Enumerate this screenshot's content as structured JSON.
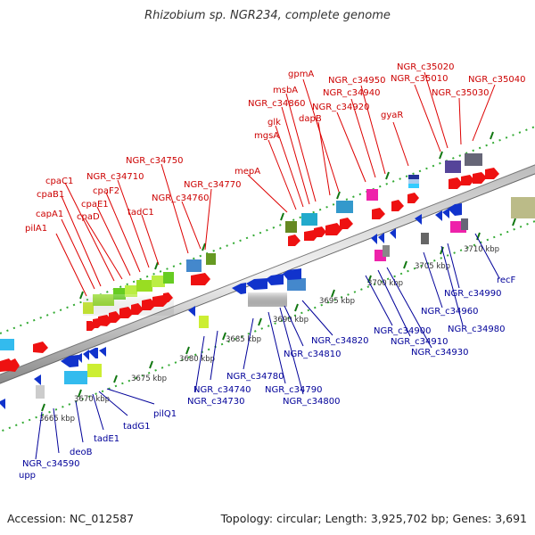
{
  "title": "Rhizobium sp. NGR234, complete genome",
  "footer": {
    "accession": "Accession: NC_012587",
    "summary": "Topology: circular; Length: 3,925,702 bp; Genes: 3,691"
  },
  "colors": {
    "forward_label": "#cc0000",
    "reverse_label": "#000099",
    "forward_arrow": "#ee1111",
    "reverse_arrow": "#1133cc",
    "backbone": "#888888",
    "dots": "#228822"
  },
  "ruler_labels": [
    "3665 kbp",
    "3670 kbp",
    "3675 kbp",
    "3680 kbp",
    "3685 kbp",
    "3690 kbp",
    "3695 kbp",
    "3700 kbp",
    "3705 kbp",
    "3710 kbp"
  ],
  "forward_gene_labels": [
    "pilA1",
    "capA1",
    "cpaB1",
    "cpaC1",
    "cpaD",
    "cpaE1",
    "cpaF2",
    "NGR_c34710",
    "tadC1",
    "NGR_c34750",
    "NGR_c34760",
    "NGR_c34770",
    "mepA",
    "mgsA",
    "glk",
    "NGR_c34860",
    "msbA",
    "gpmA",
    "dapB",
    "NGR_c34920",
    "NGR_c34940",
    "NGR_c34950",
    "gyaR",
    "NGR_c35010",
    "NGR_c35020",
    "NGR_c35030",
    "NGR_c35040"
  ],
  "reverse_gene_labels": [
    "upp",
    "NGR_c34590",
    "deoB",
    "tadE1",
    "tadG1",
    "pilQ1",
    "NGR_c34730",
    "NGR_c34740",
    "NGR_c34780",
    "NGR_c34790",
    "NGR_c34800",
    "NGR_c34810",
    "NGR_c34820",
    "NGR_c34900",
    "NGR_c34910",
    "NGR_c34930",
    "NGR_c34960",
    "NGR_c34980",
    "NGR_c34990",
    "recF"
  ]
}
